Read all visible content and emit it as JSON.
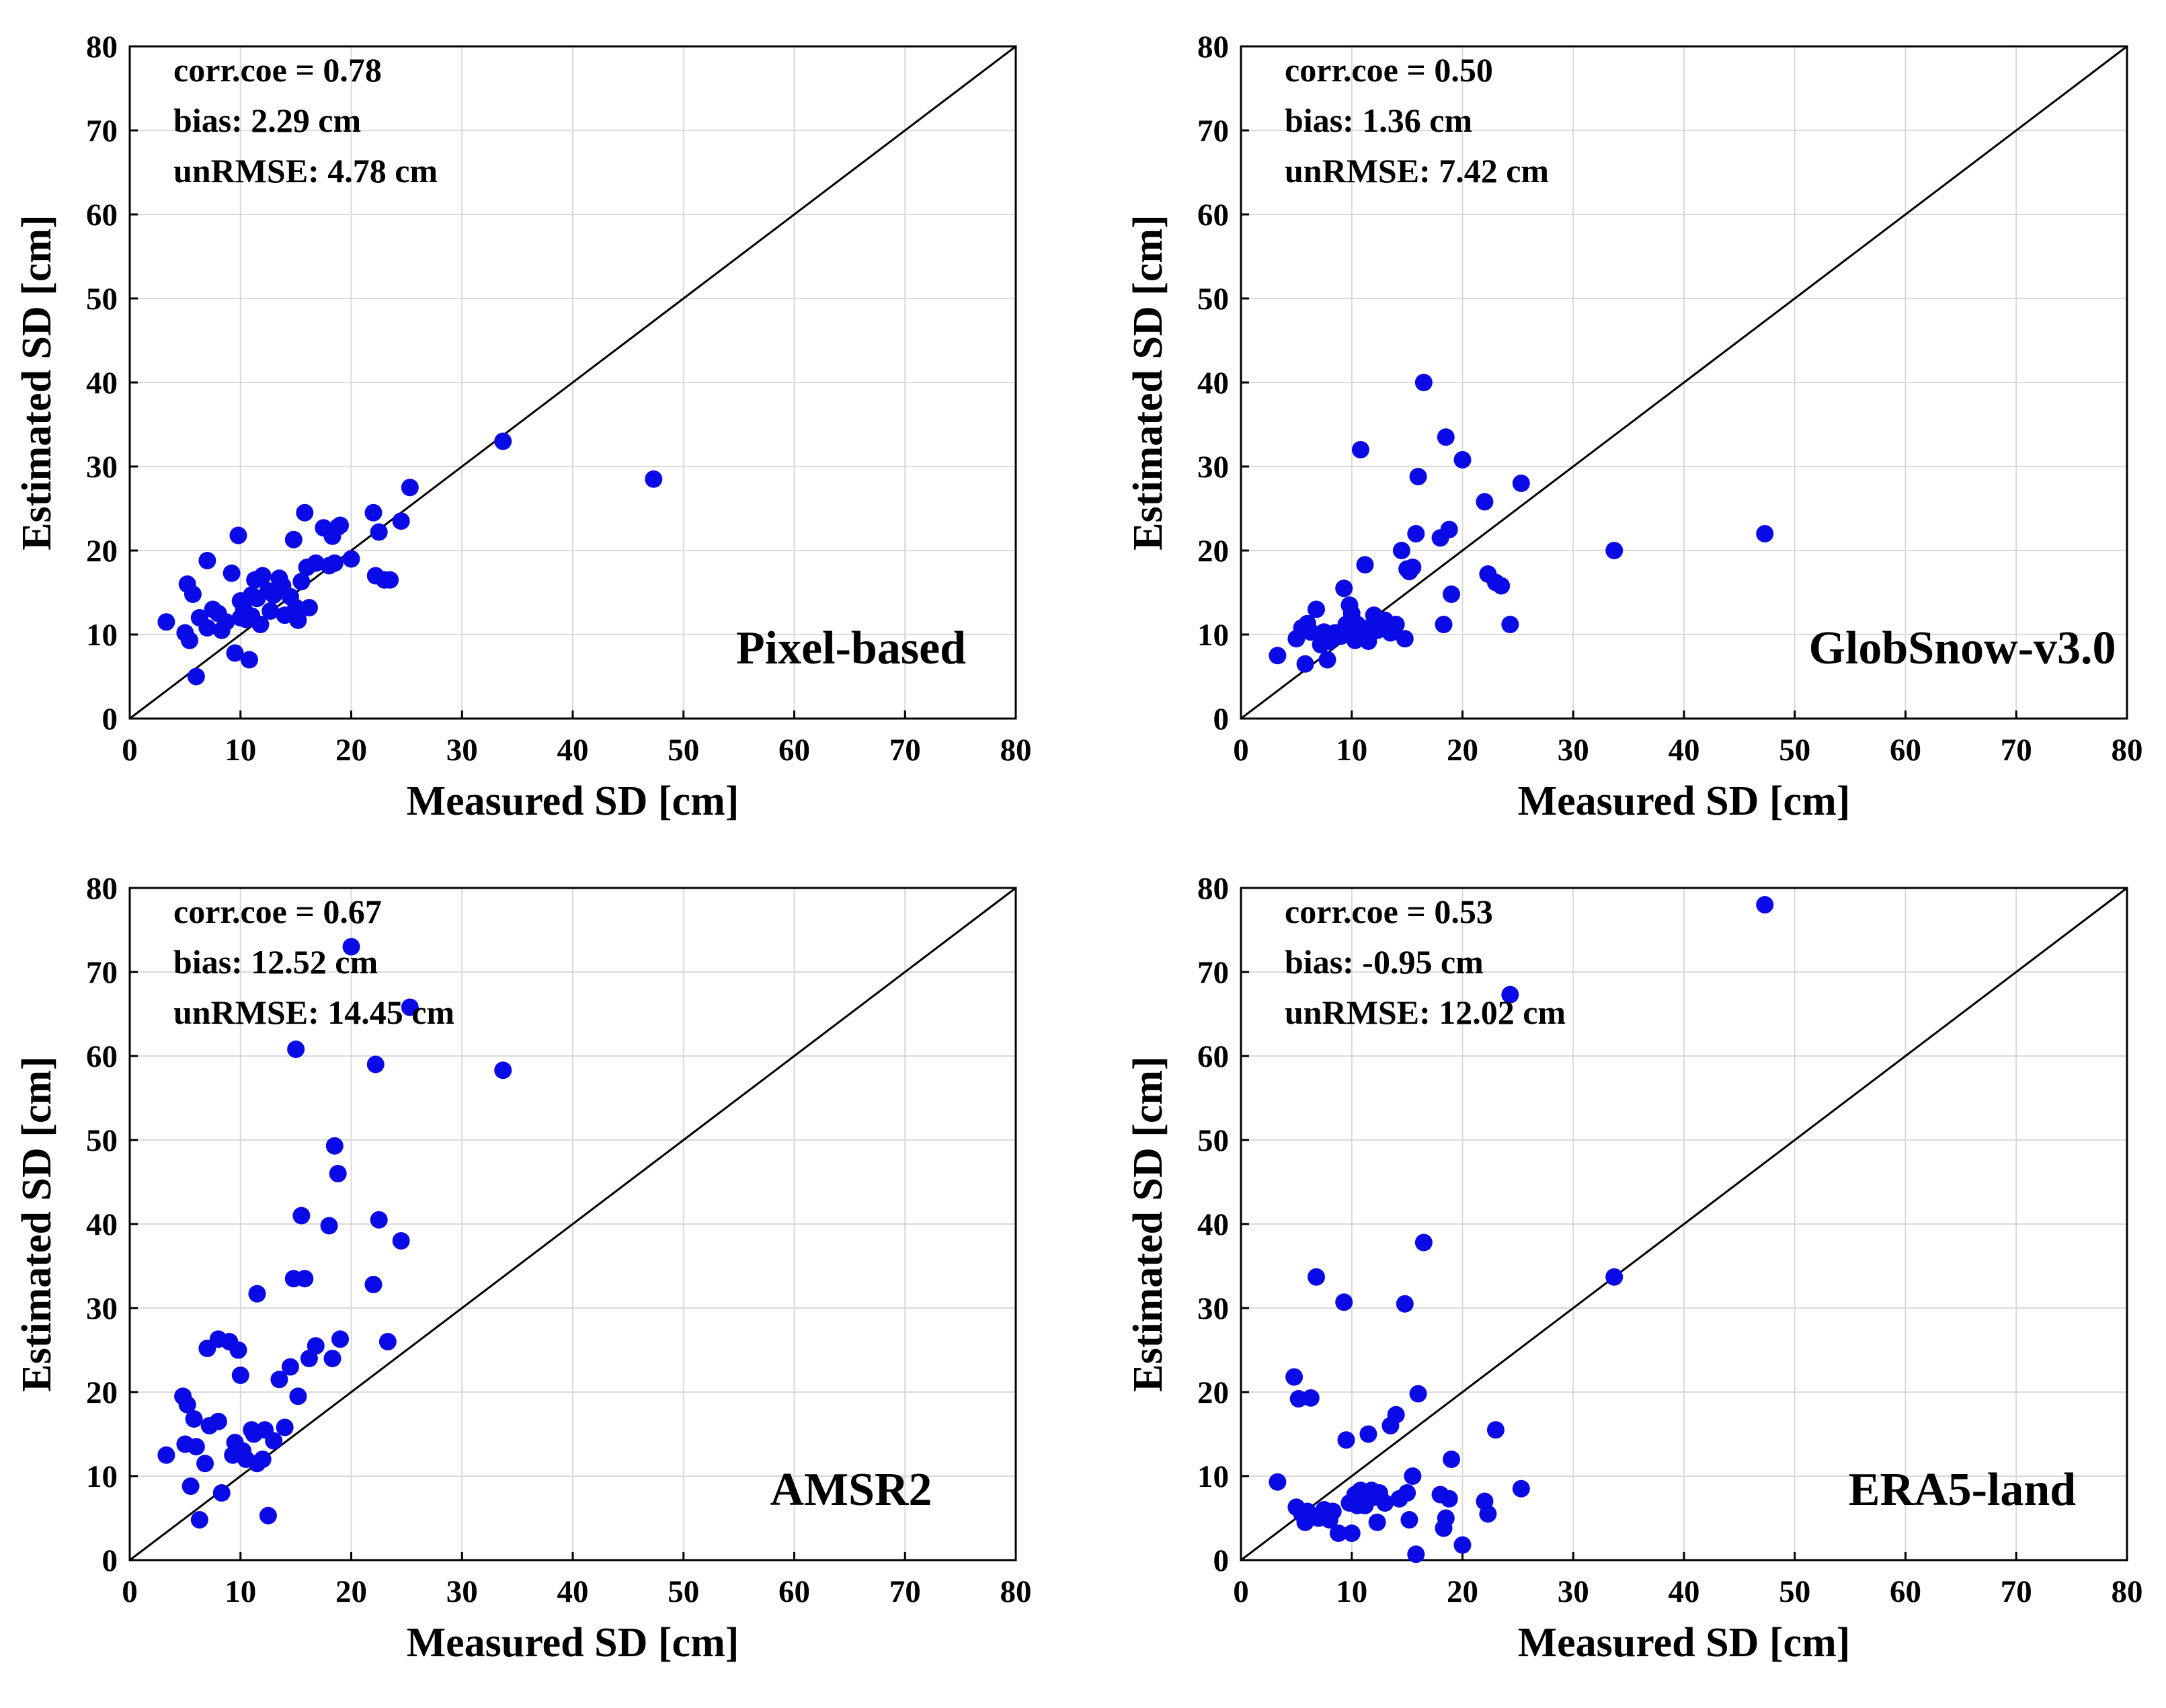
{
  "colors": {
    "points": "#0a0ae6",
    "axes": "#000000",
    "grid": "#d9d9d9",
    "line": "#000000"
  },
  "chart_data": [
    {
      "type": "scatter",
      "name": "Pixel-based",
      "stats": [
        "corr.coe = 0.78",
        "bias: 2.29 cm",
        "unRMSE: 4.78 cm"
      ],
      "xlabel": "Measured SD [cm]",
      "ylabel": "Estimated SD [cm]",
      "xlim": [
        0,
        80
      ],
      "ylim": [
        0,
        80
      ],
      "ticks": [
        "0",
        "10",
        "20",
        "30",
        "40",
        "50",
        "60",
        "70",
        "80"
      ],
      "grid": true,
      "reference_line": "1:1",
      "x": [
        3.3,
        5,
        5.2,
        5.4,
        5.7,
        6,
        6.3,
        7,
        7,
        7.5,
        8,
        8.3,
        8.7,
        9.2,
        9.5,
        9.8,
        10,
        10,
        10.3,
        10.5,
        10.8,
        11,
        11,
        11.3,
        11.5,
        11.8,
        12,
        12.5,
        12.7,
        13,
        13.5,
        13.8,
        14,
        14.5,
        14.8,
        15,
        15.2,
        15.5,
        15.8,
        16,
        16.2,
        16.8,
        17.5,
        18,
        18.3,
        18.5,
        18.8,
        19,
        20,
        22,
        22.2,
        22.5,
        23,
        23.5,
        24.5,
        25.3,
        33.7,
        47.3
      ],
      "y": [
        11.5,
        10.2,
        16,
        9.3,
        14.8,
        5,
        12,
        18.8,
        10.8,
        13,
        12.5,
        10.5,
        11.5,
        17.3,
        7.8,
        21.8,
        14,
        12,
        13,
        11.8,
        7,
        14.7,
        12.2,
        16.5,
        14.3,
        11.2,
        17,
        15.2,
        12.8,
        14.7,
        16.7,
        15.8,
        12.3,
        14.5,
        21.3,
        13.2,
        11.7,
        16.3,
        24.5,
        18,
        13.2,
        18.5,
        22.7,
        18.2,
        21.7,
        18.5,
        22.8,
        23,
        19,
        24.5,
        17,
        22.2,
        16.5,
        16.5,
        23.5,
        27.5,
        33,
        28.5
      ]
    },
    {
      "type": "scatter",
      "name": "GlobSnow-v3.0",
      "stats": [
        "corr.coe = 0.50",
        "bias: 1.36 cm",
        "unRMSE: 7.42 cm"
      ],
      "xlabel": "Measured SD [cm]",
      "ylabel": "Estimated SD [cm]",
      "xlim": [
        0,
        80
      ],
      "ylim": [
        0,
        80
      ],
      "ticks": [
        "0",
        "10",
        "20",
        "30",
        "40",
        "50",
        "60",
        "70",
        "80"
      ],
      "grid": true,
      "reference_line": "1:1",
      "x": [
        3.3,
        5,
        5.5,
        5.8,
        6,
        6.3,
        6.8,
        7.2,
        7.5,
        7.8,
        8,
        8.5,
        9,
        9.3,
        9.5,
        9.8,
        10,
        10,
        10.3,
        10.5,
        10.8,
        11,
        11.2,
        11.5,
        11.8,
        12,
        12.3,
        13,
        13.5,
        14,
        14.5,
        14.8,
        15,
        15.2,
        15.5,
        15.8,
        16,
        16.5,
        18,
        18.3,
        18.5,
        18.8,
        19,
        20,
        22,
        22.3,
        23,
        23.5,
        24.3,
        25.3,
        33.7,
        47.3
      ],
      "y": [
        7.5,
        9.5,
        10.8,
        6.5,
        11.3,
        10.3,
        13,
        8.8,
        10.3,
        7,
        9.2,
        10.2,
        9.8,
        15.5,
        11.2,
        13.5,
        10.3,
        12.5,
        9.3,
        11.2,
        32,
        10.5,
        18.3,
        9.2,
        11,
        12.3,
        10.5,
        11.7,
        10.2,
        11.2,
        20,
        9.5,
        17.8,
        17.5,
        18,
        22,
        28.8,
        40,
        21.5,
        11.2,
        33.5,
        22.5,
        14.8,
        30.8,
        25.8,
        17.2,
        16.2,
        15.8,
        11.2,
        28,
        20,
        22
      ]
    },
    {
      "type": "scatter",
      "name": "AMSR2",
      "stats": [
        "corr.coe = 0.67",
        "bias: 12.52 cm",
        "unRMSE: 14.45 cm"
      ],
      "xlabel": "Measured SD [cm]",
      "ylabel": "Estimated SD [cm]",
      "xlim": [
        0,
        80
      ],
      "ylim": [
        0,
        80
      ],
      "ticks": [
        "0",
        "10",
        "20",
        "30",
        "40",
        "50",
        "60",
        "70",
        "80"
      ],
      "grid": true,
      "reference_line": "1:1",
      "x": [
        3.3,
        4.8,
        5,
        5.2,
        5.5,
        5.8,
        6,
        6.3,
        6.8,
        7,
        7.2,
        8,
        8,
        8.3,
        9,
        9.3,
        9.5,
        9.8,
        10,
        10.2,
        10.5,
        11,
        11.2,
        11.5,
        11.5,
        12,
        12.2,
        12.5,
        13,
        13.5,
        14,
        14.5,
        14.8,
        15,
        15.2,
        15.5,
        15.8,
        16.2,
        16.8,
        18,
        18.3,
        18.5,
        18.8,
        19,
        20,
        22,
        22.2,
        22.5,
        23.3,
        24.5,
        25.3,
        33.7
      ],
      "y": [
        12.5,
        19.5,
        13.8,
        18.5,
        8.8,
        16.8,
        13.5,
        4.8,
        11.5,
        25.2,
        16,
        16.5,
        26.3,
        8,
        26,
        12.5,
        14,
        25,
        22,
        13,
        12,
        15.5,
        15,
        11.5,
        31.7,
        12,
        15.5,
        5.3,
        14.2,
        21.5,
        15.8,
        23,
        33.5,
        60.8,
        19.5,
        41,
        33.5,
        24,
        25.5,
        39.8,
        24,
        49.3,
        46,
        26.3,
        73,
        32.8,
        59,
        40.5,
        26,
        38,
        65.8,
        58.3
      ]
    },
    {
      "type": "scatter",
      "name": "ERA5-land",
      "stats": [
        "corr.coe = 0.53",
        "bias: -0.95 cm",
        "unRMSE: 12.02 cm"
      ],
      "xlabel": "Measured SD [cm]",
      "ylabel": "Estimated SD [cm]",
      "xlim": [
        0,
        80
      ],
      "ylim": [
        0,
        80
      ],
      "ticks": [
        "0",
        "10",
        "20",
        "30",
        "40",
        "50",
        "60",
        "70",
        "80"
      ],
      "grid": true,
      "reference_line": "1:1",
      "x": [
        3.3,
        4.8,
        5,
        5.2,
        5.5,
        5.8,
        6,
        6.3,
        6.8,
        7,
        7.5,
        8,
        8.3,
        8.8,
        9.3,
        9.5,
        9.8,
        10,
        10.3,
        10.5,
        10.8,
        11,
        11.2,
        11.5,
        11.8,
        12,
        12.3,
        12.5,
        13,
        13.5,
        14,
        14.3,
        14.8,
        15,
        15.2,
        15.5,
        15.8,
        16,
        16.5,
        18,
        18.3,
        18.5,
        18.8,
        19,
        20,
        22,
        22.3,
        23,
        24.3,
        25.3,
        33.7,
        47.3
      ],
      "y": [
        9.3,
        21.8,
        6.3,
        19.2,
        5.5,
        4.5,
        5.8,
        19.3,
        33.7,
        5,
        6,
        4.8,
        5.8,
        3.2,
        30.7,
        14.3,
        6.8,
        3.2,
        7.8,
        6.5,
        8.3,
        7.5,
        6.5,
        15,
        8.3,
        7.5,
        4.5,
        8,
        6.8,
        16,
        17.3,
        7.3,
        30.5,
        8,
        4.8,
        10,
        0.7,
        19.8,
        37.8,
        7.8,
        3.8,
        5,
        7.3,
        12,
        1.8,
        7,
        5.5,
        15.5,
        67.3,
        8.5,
        33.7,
        78
      ]
    }
  ]
}
